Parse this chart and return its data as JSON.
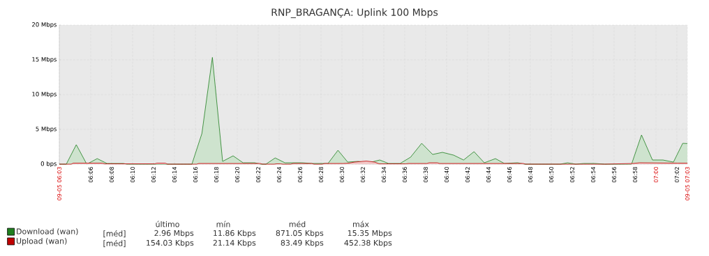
{
  "chart_data": {
    "type": "area",
    "title": "RNP_BRAGANÇA: Uplink 100 Mbps",
    "xlim": [
      6.05,
      7.05
    ],
    "xticks": [
      {
        "value": 6.05,
        "label": "09-05 06:03"
      },
      {
        "value": 6.1,
        "label": "06:06"
      },
      {
        "value": 6.1333,
        "label": "06:08"
      },
      {
        "value": 6.1667,
        "label": "06:10"
      },
      {
        "value": 6.2,
        "label": "06:12"
      },
      {
        "value": 6.2333,
        "label": "06:14"
      },
      {
        "value": 6.2667,
        "label": "06:16"
      },
      {
        "value": 6.3,
        "label": "06:18"
      },
      {
        "value": 6.3333,
        "label": "06:20"
      },
      {
        "value": 6.3667,
        "label": "06:22"
      },
      {
        "value": 6.4,
        "label": "06:24"
      },
      {
        "value": 6.4333,
        "label": "06:26"
      },
      {
        "value": 6.4667,
        "label": "06:28"
      },
      {
        "value": 6.5,
        "label": "06:30"
      },
      {
        "value": 6.5333,
        "label": "06:32"
      },
      {
        "value": 6.5667,
        "label": "06:34"
      },
      {
        "value": 6.6,
        "label": "06:36"
      },
      {
        "value": 6.6333,
        "label": "06:38"
      },
      {
        "value": 6.6667,
        "label": "06:40"
      },
      {
        "value": 6.7,
        "label": "06:42"
      },
      {
        "value": 6.7333,
        "label": "06:44"
      },
      {
        "value": 6.7667,
        "label": "06:46"
      },
      {
        "value": 6.8,
        "label": "06:48"
      },
      {
        "value": 6.8333,
        "label": "06:50"
      },
      {
        "value": 6.8667,
        "label": "06:52"
      },
      {
        "value": 6.9,
        "label": "06:54"
      },
      {
        "value": 6.9333,
        "label": "06:56"
      },
      {
        "value": 6.9667,
        "label": "06:58"
      },
      {
        "value": 7,
        "label": "07:00"
      },
      {
        "value": 7.0333,
        "label": "07:02"
      },
      {
        "value": 7.05,
        "label": "09-05 07:03"
      }
    ],
    "ylim": [
      0,
      20
    ],
    "yticks": [
      {
        "value": 0,
        "label": "0 bps"
      },
      {
        "value": 5,
        "label": "5 Mbps"
      },
      {
        "value": 10,
        "label": "10 Mbps"
      },
      {
        "value": 15,
        "label": "15 Mbps"
      },
      {
        "value": 20,
        "label": "20 Mbps"
      }
    ],
    "grid": true,
    "legend": "bottom left",
    "series": [
      {
        "name": "Download (wan)",
        "color": "#1f7f1f",
        "x": [
          6.05,
          6.0611,
          6.077,
          6.0937,
          6.1103,
          6.1259,
          6.1519,
          6.1578,
          6.2611,
          6.277,
          6.2937,
          6.31,
          6.3267,
          6.3426,
          6.3611,
          6.3703,
          6.3789,
          6.3937,
          6.4092,
          6.4363,
          6.4526,
          6.4778,
          6.4937,
          6.5092,
          6.5256,
          6.5426,
          6.5603,
          6.5741,
          6.5926,
          6.6092,
          6.627,
          6.6444,
          6.66,
          6.6778,
          6.6937,
          6.7103,
          6.7267,
          6.7444,
          6.7586,
          6.7797,
          6.7908,
          6.8478,
          6.8592,
          6.8722,
          6.8852,
          6.9019,
          6.9186,
          6.9611,
          6.977,
          6.9944,
          7.0111,
          7.0278,
          7.0426,
          7.05
        ],
        "values": [
          0,
          0,
          2.8,
          0,
          0.8,
          0.1,
          0.1,
          0,
          0,
          4.4,
          15.35,
          0.4,
          1.2,
          0.2,
          0.2,
          0,
          0,
          0.9,
          0.2,
          0.2,
          0.1,
          0.1,
          2.0,
          0.3,
          0.4,
          0.2,
          0.6,
          0.1,
          0.1,
          1.0,
          3.0,
          1.4,
          1.7,
          1.3,
          0.6,
          1.8,
          0.2,
          0.8,
          0.1,
          0.2,
          0,
          0,
          0.2,
          0,
          0.1,
          0.1,
          0,
          0,
          4.2,
          0.6,
          0.6,
          0.3,
          3.0,
          2.96
        ]
      },
      {
        "name": "Upload (wan)",
        "color": "#c00000",
        "x": [
          6.05,
          6.0689,
          6.0722,
          6.1186,
          6.1222,
          6.2019,
          6.2056,
          6.2186,
          6.2222,
          6.2686,
          6.2722,
          6.37,
          6.3733,
          6.3922,
          6.3956,
          6.4019,
          6.4056,
          6.4186,
          6.4222,
          6.4519,
          6.4556,
          6.4686,
          6.4722,
          6.5019,
          6.5111,
          6.52,
          6.5389,
          6.5522,
          6.5589,
          6.6019,
          6.6056,
          6.6352,
          6.6389,
          6.6519,
          6.6556,
          6.7889,
          6.7922,
          6.9186,
          6.963,
          6.9741,
          7.0352,
          7.05
        ],
        "values": [
          0,
          0,
          0.15,
          0.15,
          0.05,
          0.05,
          0.15,
          0.15,
          0,
          0,
          0.1,
          0.1,
          0,
          0,
          0.05,
          0.05,
          0,
          0,
          0.1,
          0.1,
          0,
          0,
          0.1,
          0.1,
          0.15,
          0.3,
          0.45,
          0.3,
          0.05,
          0.05,
          0.1,
          0.1,
          0.2,
          0.2,
          0.1,
          0.1,
          0,
          0,
          0.1,
          0.2,
          0.15,
          0.15
        ]
      }
    ],
    "annotations": [
      "último",
      "mín",
      "méd",
      "máx",
      "[méd]",
      "2.96 Mbps",
      "11.86 Kbps",
      "871.05 Kbps",
      "15.35 Mbps",
      "[méd]",
      "154.03 Kbps",
      "21.14 Kbps",
      "83.49 Kbps",
      "452.38 Kbps"
    ]
  }
}
